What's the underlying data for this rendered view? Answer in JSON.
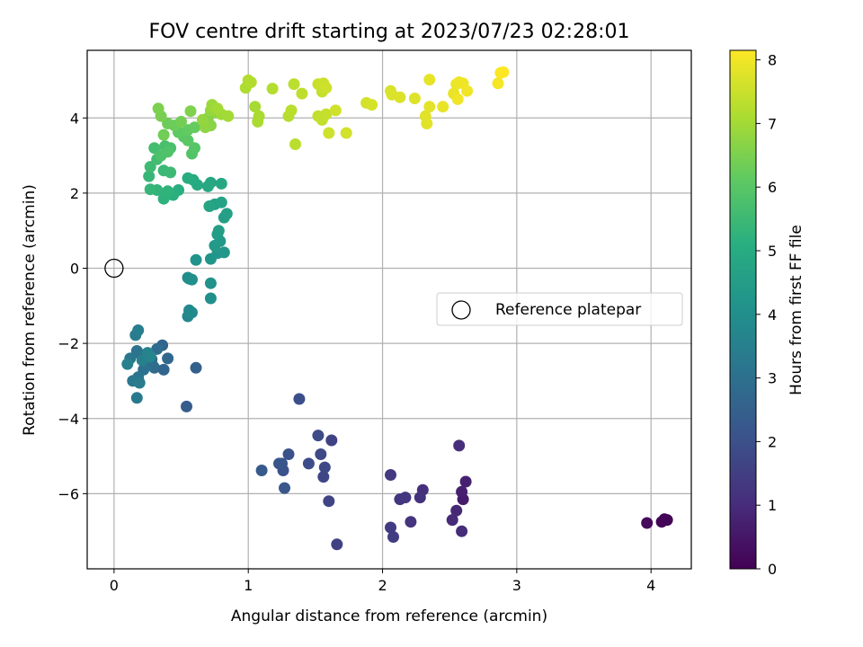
{
  "chart_data": {
    "type": "scatter",
    "title": "FOV centre drift starting at 2023/07/23 02:28:01",
    "xlabel": "Angular distance from reference (arcmin)",
    "ylabel": "Rotation from reference (arcmin)",
    "xlim": [
      -0.2,
      4.3
    ],
    "ylim": [
      -8.0,
      5.8
    ],
    "xticks": [
      0,
      1,
      2,
      3,
      4
    ],
    "yticks": [
      -6,
      -4,
      -2,
      0,
      2,
      4
    ],
    "grid": true,
    "colormap": "viridis",
    "colorbar": {
      "label": "Hours from first FF file",
      "range": [
        0,
        8.15
      ],
      "ticks": [
        0,
        1,
        2,
        3,
        4,
        5,
        6,
        7,
        8
      ]
    },
    "reference": {
      "x": 0,
      "y": 0,
      "legend_label": "Reference platepar",
      "legend_loc": "center right"
    },
    "points": [
      [
        4.1,
        -6.68,
        0.05
      ],
      [
        4.08,
        -6.75,
        0.1
      ],
      [
        3.97,
        -6.78,
        0.2
      ],
      [
        4.12,
        -6.7,
        0.08
      ],
      [
        2.6,
        -6.15,
        0.6
      ],
      [
        2.59,
        -5.95,
        0.7
      ],
      [
        2.62,
        -5.68,
        0.75
      ],
      [
        2.55,
        -6.45,
        0.9
      ],
      [
        2.52,
        -6.7,
        0.95
      ],
      [
        2.59,
        -7.0,
        1.0
      ],
      [
        2.57,
        -4.72,
        1.05
      ],
      [
        2.3,
        -5.9,
        1.1
      ],
      [
        2.28,
        -6.1,
        1.15
      ],
      [
        2.21,
        -6.75,
        1.2
      ],
      [
        2.13,
        -6.15,
        1.25
      ],
      [
        2.17,
        -6.1,
        1.3
      ],
      [
        2.06,
        -5.5,
        1.35
      ],
      [
        2.06,
        -6.9,
        1.4
      ],
      [
        2.08,
        -7.15,
        1.45
      ],
      [
        1.66,
        -7.35,
        1.55
      ],
      [
        1.62,
        -4.58,
        1.6
      ],
      [
        1.6,
        -6.2,
        1.65
      ],
      [
        1.56,
        -5.55,
        1.7
      ],
      [
        1.57,
        -5.3,
        1.75
      ],
      [
        1.54,
        -4.95,
        1.8
      ],
      [
        1.52,
        -4.45,
        1.85
      ],
      [
        1.45,
        -5.2,
        1.9
      ],
      [
        1.38,
        -3.48,
        1.95
      ],
      [
        1.3,
        -4.95,
        2.0
      ],
      [
        1.26,
        -5.38,
        2.05
      ],
      [
        1.25,
        -5.2,
        2.1
      ],
      [
        1.23,
        -5.2,
        2.15
      ],
      [
        1.27,
        -5.85,
        2.2
      ],
      [
        1.1,
        -5.38,
        2.25
      ],
      [
        0.54,
        -3.68,
        2.4
      ],
      [
        0.61,
        -2.65,
        2.5
      ],
      [
        0.36,
        -2.05,
        2.6
      ],
      [
        0.37,
        -2.7,
        2.65
      ],
      [
        0.4,
        -2.4,
        2.7
      ],
      [
        0.3,
        -2.65,
        2.75
      ],
      [
        0.28,
        -2.42,
        2.8
      ],
      [
        0.32,
        -2.15,
        2.85
      ],
      [
        0.29,
        -2.6,
        2.9
      ],
      [
        0.25,
        -2.55,
        2.95
      ],
      [
        0.2,
        -2.3,
        3.0
      ],
      [
        0.22,
        -2.7,
        3.05
      ],
      [
        0.17,
        -2.2,
        3.1
      ],
      [
        0.18,
        -2.9,
        3.15
      ],
      [
        0.12,
        -2.4,
        3.2
      ],
      [
        0.14,
        -3.0,
        3.25
      ],
      [
        0.17,
        -3.45,
        3.3
      ],
      [
        0.19,
        -3.05,
        3.35
      ],
      [
        0.16,
        -1.78,
        3.4
      ],
      [
        0.18,
        -1.65,
        3.45
      ],
      [
        0.1,
        -2.55,
        3.5
      ],
      [
        0.21,
        -2.45,
        3.55
      ],
      [
        0.25,
        -2.25,
        3.6
      ],
      [
        0.27,
        -2.35,
        3.65
      ],
      [
        0.55,
        -1.28,
        3.75
      ],
      [
        0.56,
        -1.12,
        3.8
      ],
      [
        0.58,
        -1.18,
        3.85
      ],
      [
        0.56,
        -0.28,
        3.9
      ],
      [
        0.55,
        -0.25,
        3.95
      ],
      [
        0.58,
        -0.3,
        4.0
      ],
      [
        0.72,
        -0.8,
        4.05
      ],
      [
        0.72,
        -0.4,
        4.1
      ],
      [
        0.61,
        0.22,
        4.15
      ],
      [
        0.72,
        0.25,
        4.2
      ],
      [
        0.77,
        0.4,
        4.25
      ],
      [
        0.82,
        0.42,
        4.3
      ],
      [
        0.79,
        0.72,
        4.35
      ],
      [
        0.75,
        0.6,
        4.4
      ],
      [
        0.77,
        0.9,
        4.45
      ],
      [
        0.78,
        1.0,
        4.5
      ],
      [
        0.82,
        1.35,
        4.55
      ],
      [
        0.84,
        1.45,
        4.6
      ],
      [
        0.75,
        1.7,
        4.65
      ],
      [
        0.8,
        1.75,
        4.7
      ],
      [
        0.71,
        1.65,
        4.75
      ],
      [
        0.72,
        2.28,
        4.8
      ],
      [
        0.8,
        2.25,
        4.85
      ],
      [
        0.7,
        2.18,
        4.9
      ],
      [
        0.62,
        2.22,
        4.95
      ],
      [
        0.59,
        2.35,
        5.0
      ],
      [
        0.55,
        2.4,
        5.05
      ],
      [
        0.48,
        2.08,
        5.1
      ],
      [
        0.44,
        1.95,
        5.15
      ],
      [
        0.37,
        1.85,
        5.2
      ],
      [
        0.4,
        2.05,
        5.25
      ],
      [
        0.32,
        2.08,
        5.3
      ],
      [
        0.27,
        2.1,
        5.35
      ],
      [
        0.26,
        2.45,
        5.4
      ],
      [
        0.37,
        2.6,
        5.45
      ],
      [
        0.42,
        2.55,
        5.5
      ],
      [
        0.27,
        2.7,
        5.55
      ],
      [
        0.32,
        2.9,
        5.6
      ],
      [
        0.3,
        3.2,
        5.65
      ],
      [
        0.38,
        3.25,
        5.7
      ],
      [
        0.42,
        3.2,
        5.75
      ],
      [
        0.35,
        3.0,
        5.8
      ],
      [
        0.4,
        3.1,
        5.85
      ],
      [
        0.58,
        3.05,
        5.9
      ],
      [
        0.6,
        3.2,
        5.95
      ],
      [
        0.52,
        3.5,
        6.0
      ],
      [
        0.55,
        3.4,
        6.05
      ],
      [
        0.48,
        3.62,
        6.1
      ],
      [
        0.55,
        3.68,
        6.15
      ],
      [
        0.6,
        3.75,
        6.2
      ],
      [
        0.45,
        3.8,
        6.25
      ],
      [
        0.4,
        3.85,
        6.3
      ],
      [
        0.37,
        3.55,
        6.35
      ],
      [
        0.5,
        3.9,
        6.4
      ],
      [
        0.35,
        4.05,
        6.45
      ],
      [
        0.33,
        4.25,
        6.5
      ],
      [
        0.57,
        4.18,
        6.55
      ],
      [
        0.7,
        4.0,
        6.6
      ],
      [
        0.72,
        3.8,
        6.65
      ],
      [
        0.75,
        4.15,
        6.7
      ],
      [
        0.68,
        3.75,
        6.75
      ],
      [
        0.66,
        3.95,
        6.8
      ],
      [
        0.72,
        4.2,
        6.85
      ],
      [
        0.73,
        4.35,
        6.9
      ],
      [
        0.8,
        4.1,
        6.95
      ],
      [
        0.85,
        4.05,
        7.0
      ],
      [
        0.77,
        4.25,
        7.02
      ],
      [
        1.05,
        4.3,
        7.05
      ],
      [
        1.08,
        4.05,
        7.08
      ],
      [
        1.07,
        3.9,
        7.1
      ],
      [
        0.98,
        4.8,
        7.15
      ],
      [
        1.0,
        5.0,
        7.18
      ],
      [
        1.02,
        4.95,
        7.2
      ],
      [
        1.18,
        4.78,
        7.22
      ],
      [
        1.3,
        4.05,
        7.25
      ],
      [
        1.32,
        4.2,
        7.28
      ],
      [
        1.35,
        3.3,
        7.3
      ],
      [
        1.34,
        4.9,
        7.32
      ],
      [
        1.4,
        4.65,
        7.35
      ],
      [
        1.52,
        4.05,
        7.38
      ],
      [
        1.55,
        3.95,
        7.4
      ],
      [
        1.58,
        4.1,
        7.42
      ],
      [
        1.55,
        4.7,
        7.45
      ],
      [
        1.52,
        4.9,
        7.48
      ],
      [
        1.56,
        4.92,
        7.5
      ],
      [
        1.58,
        4.8,
        7.52
      ],
      [
        1.6,
        3.6,
        7.55
      ],
      [
        1.65,
        4.2,
        7.58
      ],
      [
        1.73,
        3.6,
        7.6
      ],
      [
        1.88,
        4.4,
        7.62
      ],
      [
        1.92,
        4.35,
        7.65
      ],
      [
        2.06,
        4.72,
        7.68
      ],
      [
        2.07,
        4.62,
        7.7
      ],
      [
        2.13,
        4.55,
        7.72
      ],
      [
        2.24,
        4.52,
        7.75
      ],
      [
        2.32,
        4.05,
        7.78
      ],
      [
        2.33,
        3.85,
        7.8
      ],
      [
        2.35,
        4.3,
        7.82
      ],
      [
        2.35,
        5.02,
        7.85
      ],
      [
        2.45,
        4.3,
        7.88
      ],
      [
        2.53,
        4.65,
        7.9
      ],
      [
        2.55,
        4.9,
        7.92
      ],
      [
        2.57,
        4.95,
        7.94
      ],
      [
        2.6,
        4.92,
        7.96
      ],
      [
        2.56,
        4.5,
        7.98
      ],
      [
        2.63,
        4.72,
        8.0
      ],
      [
        2.86,
        4.92,
        8.05
      ],
      [
        2.88,
        5.2,
        8.1
      ],
      [
        2.9,
        5.22,
        8.15
      ]
    ]
  }
}
